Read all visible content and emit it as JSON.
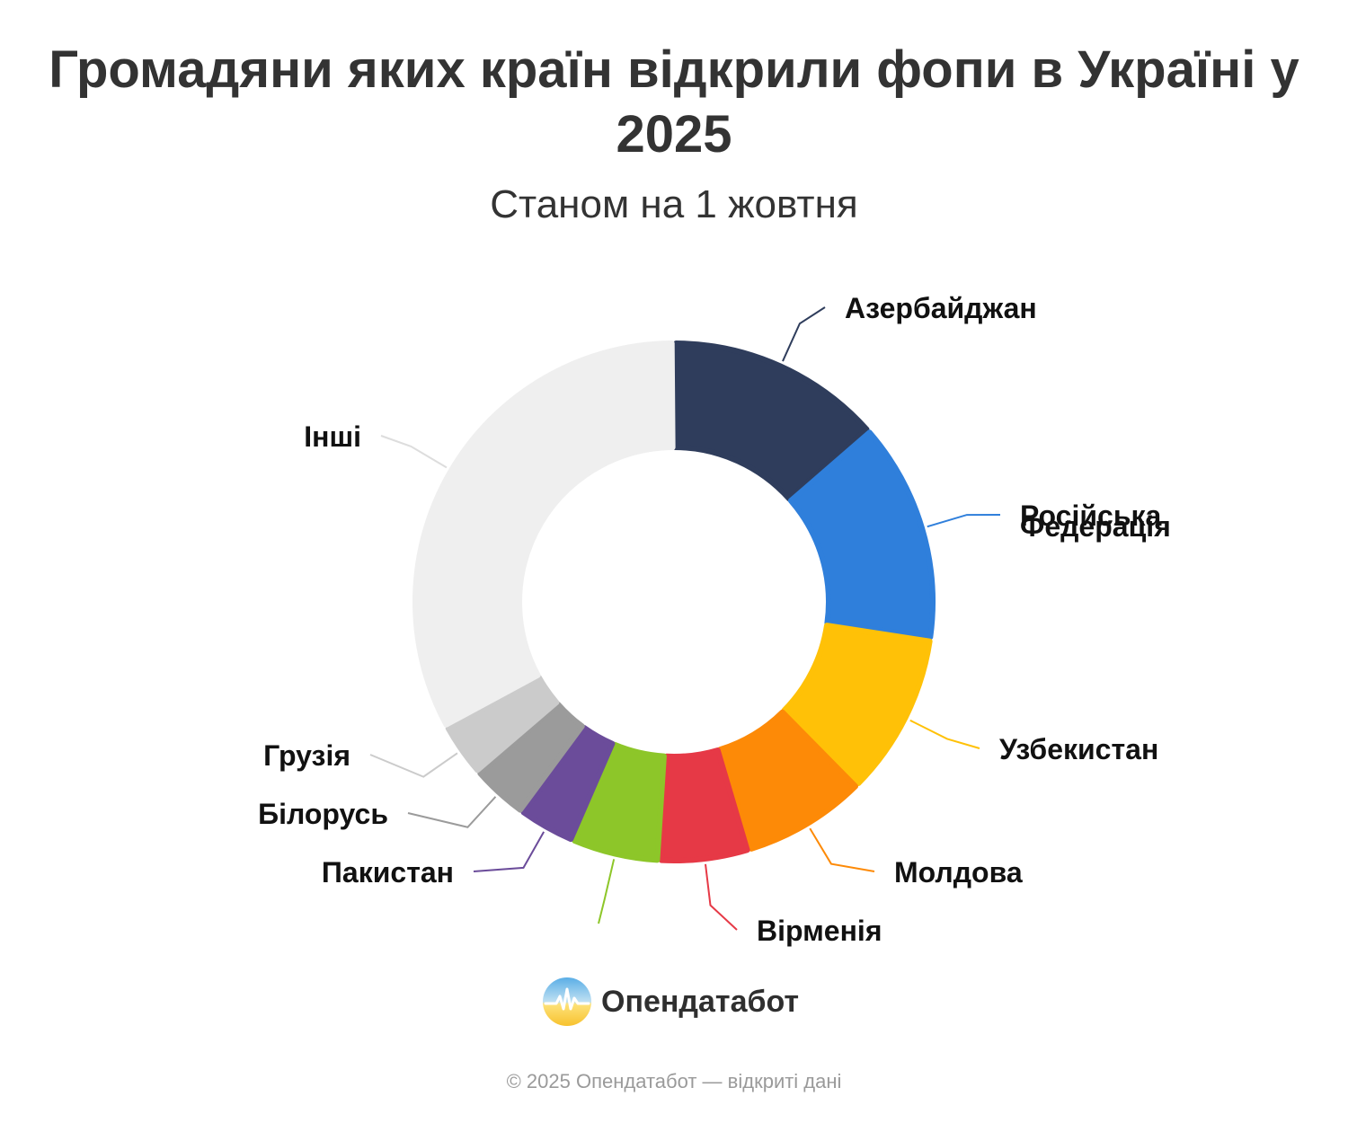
{
  "title": "Громадяни яких країн відкрили фопи в Україні у 2025",
  "subtitle": "Станом на 1 жовтня",
  "logo_text": "Опендатабот",
  "footer": "© 2025 Опендатабот — відкриті дані",
  "chart_data": {
    "type": "pie",
    "donut": true,
    "title": "Громадяни яких країн відкрили фопи в Україні у 2025",
    "subtitle": "Станом на 1 жовтня",
    "categories": [
      "Азербайджан",
      "Російська Федерація",
      "Узбекистан",
      "Молдова",
      "Вірменія",
      "",
      "Пакистан",
      "Білорусь",
      "Грузія",
      "Інші"
    ],
    "values": [
      13.5,
      13.8,
      10.2,
      7.8,
      5.6,
      5.5,
      3.6,
      3.6,
      3.4,
      33.0
    ],
    "colors": [
      "#2f3d5c",
      "#2f7fdb",
      "#ffc107",
      "#fd8a07",
      "#e63946",
      "#8dc629",
      "#6b4c9a",
      "#9b9b9b",
      "#cbcbcb",
      "#efefef"
    ],
    "value_unit": "%"
  }
}
